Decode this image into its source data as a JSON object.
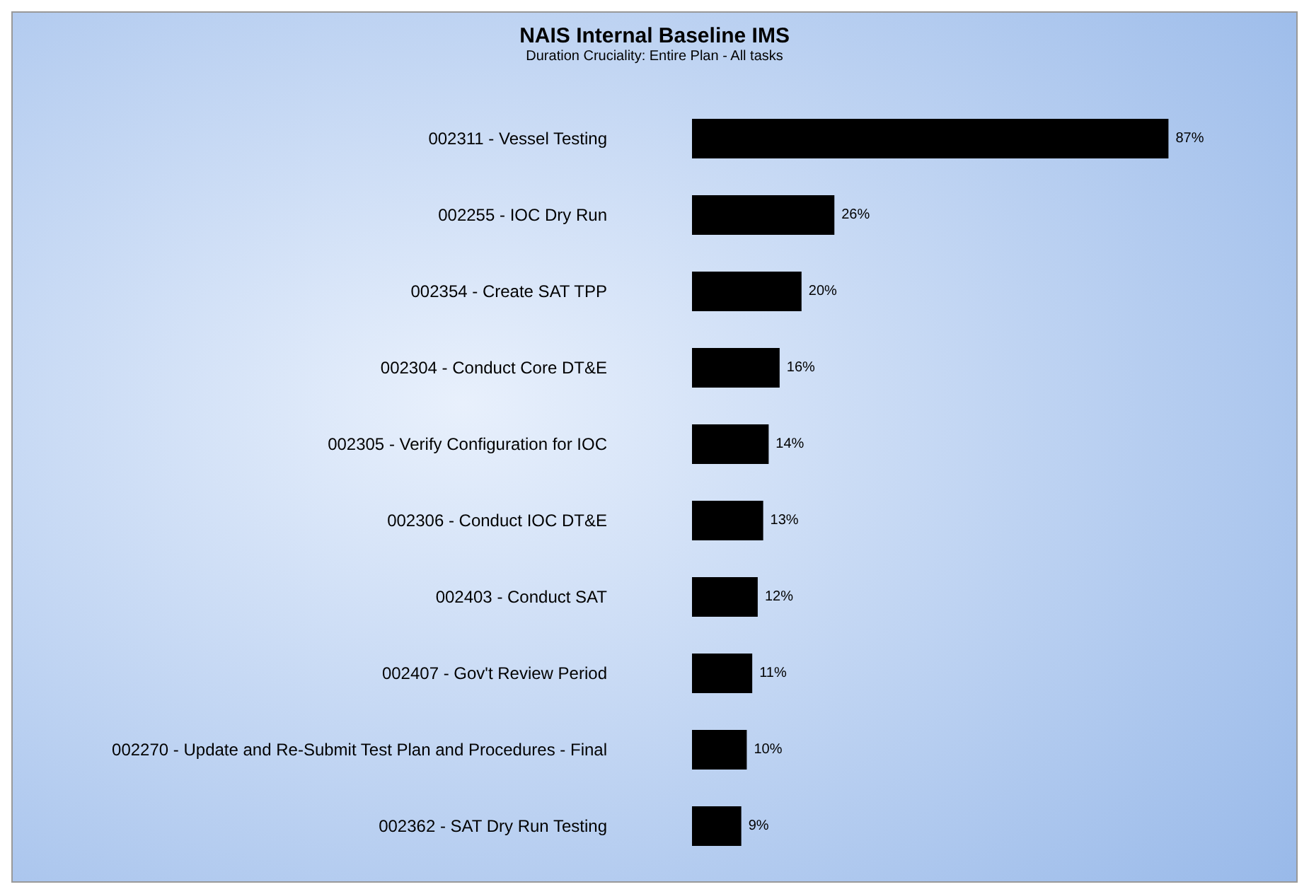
{
  "chart_data": {
    "type": "bar",
    "orientation": "horizontal",
    "title": "NAIS Internal Baseline IMS",
    "subtitle": "Duration Cruciality: Entire Plan - All tasks",
    "categories": [
      "002311 - Vessel Testing",
      "002255 - IOC Dry Run",
      "002354 - Create SAT TPP",
      "002304 - Conduct Core DT&E",
      "002305 - Verify Configuration for IOC",
      "002306 - Conduct IOC DT&E",
      "002403 - Conduct SAT",
      "002407 - Gov't Review Period",
      "002270 - Update and Re-Submit Test Plan and Procedures - Final",
      "002362 - SAT Dry Run Testing"
    ],
    "values": [
      87,
      26,
      20,
      16,
      14,
      13,
      12,
      11,
      10,
      9
    ],
    "value_labels": [
      "87%",
      "26%",
      "20%",
      "16%",
      "14%",
      "13%",
      "12%",
      "11%",
      "10%",
      "9%"
    ],
    "color": "#000000"
  }
}
